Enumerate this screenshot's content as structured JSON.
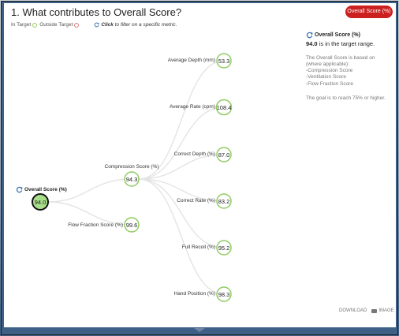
{
  "header": {
    "title": "1. What contributes to Overall Score?",
    "badge": "Overall Score (%)"
  },
  "legend": {
    "in_target": "In Target",
    "outside_target": "Outside Target",
    "hint_bold": "Click",
    "hint_rest": "to filter on a specific metric."
  },
  "tree": {
    "root": {
      "label": "Overall Score (%)",
      "value": "94.0"
    },
    "compression": {
      "label": "Compression Score (%)",
      "value": "94.3"
    },
    "flow": {
      "label": "Flow Fraction Score (%)",
      "value": "99.6"
    },
    "leaves": [
      {
        "label": "Average Depth (mm)",
        "value": "53.3"
      },
      {
        "label": "Average Rate (cpm)",
        "value": "108.4"
      },
      {
        "label": "Correct Depth (%)",
        "value": "87.0"
      },
      {
        "label": "Correct Rate (%)",
        "value": "83.2"
      },
      {
        "label": "Full Recoil (%)",
        "value": "95.2"
      },
      {
        "label": "Hand Position (%)",
        "value": "98.3"
      }
    ]
  },
  "sidebar": {
    "title": "Overall Score (%)",
    "status_value": "94.0",
    "status_text": "is in the target range.",
    "desc_lines": [
      "The Overall Score is based on",
      "(where applicable):",
      "-Compression Score",
      "-Ventilation Score",
      "-Flow Fraction Score"
    ],
    "goal": "The goal is to reach 75% or higher."
  },
  "footer": {
    "download": "DOWNLOAD",
    "image": "IMAGE"
  },
  "colors": {
    "in_target": "#8fcc63",
    "outside_target": "#e07a7a",
    "badge": "#cc1f1f"
  }
}
